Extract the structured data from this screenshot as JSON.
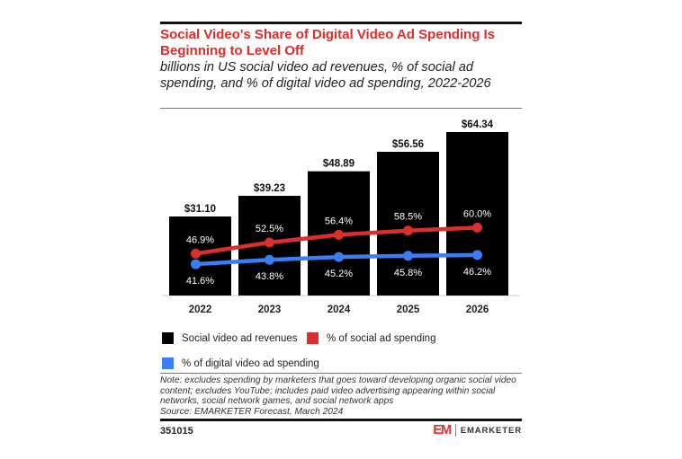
{
  "title": "Social Video's Share of Digital Video Ad Spending Is Beginning to Level Off",
  "subtitle": "billions in US social video ad revenues, % of social ad spending, and % of digital video ad spending, 2022-2026",
  "chart_data": {
    "type": "bar",
    "title": "Social Video's Share of Digital Video Ad Spending Is Beginning to Level Off",
    "subtitle": "billions in US social video ad revenues, % of social ad spending, and % of digital video ad spending, 2022-2026",
    "xlabel": "",
    "ylabel": "",
    "categories": [
      "2022",
      "2023",
      "2024",
      "2025",
      "2026"
    ],
    "bar_ylim": [
      0,
      64.34
    ],
    "line_ylim": [
      0,
      100
    ],
    "grid": false,
    "legend_position": "bottom",
    "series": [
      {
        "name": "Social video ad revenues",
        "type": "bar",
        "color": "#000000",
        "values": [
          31.1,
          39.23,
          48.89,
          56.56,
          64.34
        ],
        "labels": [
          "$31.10",
          "$39.23",
          "$48.89",
          "$56.56",
          "$64.34"
        ]
      },
      {
        "name": "% of social ad spending",
        "type": "line",
        "color": "#d9302f",
        "values": [
          46.9,
          52.5,
          56.4,
          58.5,
          60.0
        ],
        "labels": [
          "46.9%",
          "52.5%",
          "56.4%",
          "58.5%",
          "60.0%"
        ]
      },
      {
        "name": "% of digital video ad spending",
        "type": "line",
        "color": "#3a7df5",
        "values": [
          41.6,
          43.8,
          45.2,
          45.8,
          46.2
        ],
        "labels": [
          "41.6%",
          "43.8%",
          "45.2%",
          "45.8%",
          "46.2%"
        ]
      }
    ]
  },
  "legend": {
    "items": [
      {
        "label": "Social video ad revenues",
        "color": "#000000"
      },
      {
        "label": "% of social ad spending",
        "color": "#d9302f"
      },
      {
        "label": "% of digital video ad spending",
        "color": "#3a7df5"
      }
    ]
  },
  "note": {
    "text": "Note: excludes spending by marketers that goes toward developing organic social video content; excludes YouTube; includes paid video advertising appearing within social networks, social network games, and social network apps",
    "source": "Source: EMARKETER Forecast, March 2024"
  },
  "footer": {
    "chart_id": "351015",
    "brand_mark": "EM",
    "brand_name": "EMARKETER"
  }
}
